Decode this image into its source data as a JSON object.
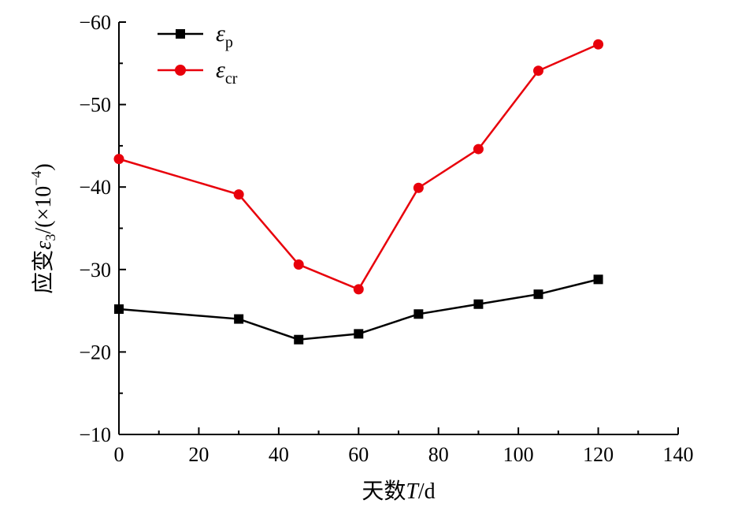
{
  "chart_data": {
    "type": "line",
    "title": "",
    "xlabel": {
      "prefix": "天数",
      "var": "T",
      "suffix": "/d"
    },
    "ylabel": {
      "prefix": "应变",
      "var": "ε",
      "sub": "3",
      "suffix": "/(×10",
      "exp": "−4",
      "close": ")"
    },
    "xlim": [
      0,
      140
    ],
    "ylim": [
      -10,
      -60
    ],
    "xticks": [
      "0",
      "20",
      "40",
      "60",
      "80",
      "100",
      "120",
      "140"
    ],
    "yticks": [
      "−10",
      "−20",
      "−30",
      "−40",
      "−50",
      "−60"
    ],
    "x": [
      0,
      30,
      45,
      60,
      75,
      90,
      105,
      120
    ],
    "series": [
      {
        "name": "εp",
        "symbol": "ε",
        "sub": "p",
        "marker": "square",
        "color": "#000000",
        "values": [
          -25.2,
          -24.0,
          -21.5,
          -22.2,
          -24.6,
          -25.8,
          -27.0,
          -28.8
        ]
      },
      {
        "name": "εcr",
        "symbol": "ε",
        "sub": "cr",
        "marker": "circle",
        "color": "#e8000b",
        "values": [
          -43.4,
          -39.1,
          -30.6,
          -27.6,
          -39.9,
          -44.6,
          -54.1,
          -57.3
        ]
      }
    ],
    "legend": "top-left",
    "grid": false
  }
}
